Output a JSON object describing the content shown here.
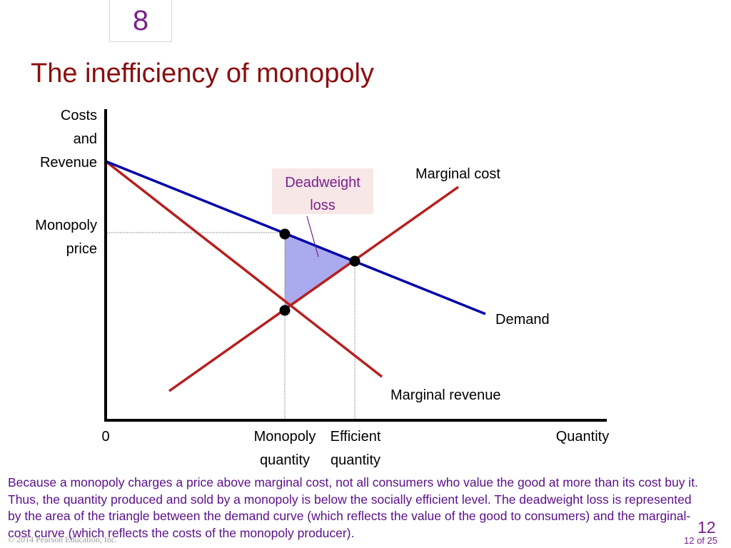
{
  "slide": {
    "chapter": "8",
    "title": "The inefficiency of monopoly",
    "caption": "Because a monopoly charges a price above marginal cost, not all consumers who value the good at more than its cost buy it. Thus, the quantity produced and sold by a monopoly is below the socially efficient level. The deadweight loss is represented by the area of the triangle between the demand curve (which reflects the value of the good to consumers) and the marginal-cost curve (which reflects the costs of the monopoly producer).",
    "copyright": "© 2014 Pearson Education, Inc.",
    "page_number": "12",
    "page_of": "12 of 25"
  },
  "diagram": {
    "y_axis_label": [
      "Costs",
      "and",
      "Revenue"
    ],
    "y_tick_label": [
      "Monopoly",
      "price"
    ],
    "x_origin": "0",
    "x_tick_monopoly": [
      "Monopoly",
      "quantity"
    ],
    "x_tick_efficient": [
      "Efficient",
      "quantity"
    ],
    "x_axis_label": "Quantity",
    "curves": {
      "marginal_cost": "Marginal cost",
      "demand": "Demand",
      "marginal_revenue": "Marginal revenue"
    },
    "deadweight_loss_label": [
      "Deadweight",
      "loss"
    ],
    "colors": {
      "demand": "#0000aa",
      "marginal_cost": "#b81f1f",
      "marginal_revenue": "#b81f1f",
      "deadweight_fill": "#aaaaee",
      "label_box": "#f7e7e7",
      "title": "#8b0e0e",
      "caption": "#5b0f8a"
    }
  }
}
